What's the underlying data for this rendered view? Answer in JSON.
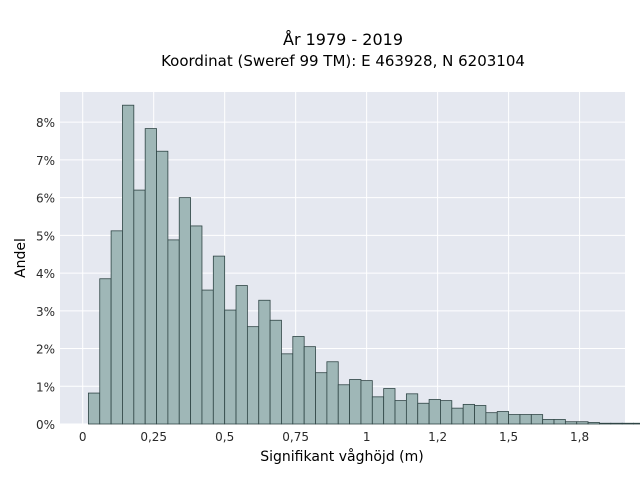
{
  "chart_data": {
    "type": "bar",
    "title_line1": "År 1979 - 2019",
    "title_line2": "Koordinat (Sweref 99 TM): E 463928, N 6203104",
    "xlabel": "Signifikant våghöjd (m)",
    "ylabel": "Andel",
    "xlim": [
      -0.08,
      1.91
    ],
    "ylim": [
      0,
      0.088
    ],
    "grid": true,
    "x_ticks": [
      {
        "value": 0,
        "label": "0"
      },
      {
        "value": 0.25,
        "label": "0,25"
      },
      {
        "value": 0.5,
        "label": "0,5"
      },
      {
        "value": 0.75,
        "label": "0,75"
      },
      {
        "value": 1,
        "label": "1"
      },
      {
        "value": 1.25,
        "label": "1,2"
      },
      {
        "value": 1.5,
        "label": "1,5"
      },
      {
        "value": 1.75,
        "label": "1,8"
      }
    ],
    "y_ticks": [
      {
        "value": 0,
        "label": "0%"
      },
      {
        "value": 0.01,
        "label": "1%"
      },
      {
        "value": 0.02,
        "label": "2%"
      },
      {
        "value": 0.03,
        "label": "3%"
      },
      {
        "value": 0.04,
        "label": "4%"
      },
      {
        "value": 0.05,
        "label": "5%"
      },
      {
        "value": 0.06,
        "label": "6%"
      },
      {
        "value": 0.07,
        "label": "7%"
      },
      {
        "value": 0.08,
        "label": "8%"
      }
    ],
    "bin_start": 0.02,
    "bin_width": 0.04,
    "values": [
      0.0082,
      0.0385,
      0.0512,
      0.0845,
      0.062,
      0.0783,
      0.0723,
      0.0488,
      0.06,
      0.0525,
      0.0355,
      0.0445,
      0.0302,
      0.0367,
      0.0258,
      0.0328,
      0.0275,
      0.0186,
      0.0232,
      0.0205,
      0.0136,
      0.0165,
      0.0104,
      0.0118,
      0.0115,
      0.0072,
      0.0094,
      0.0062,
      0.008,
      0.0055,
      0.0065,
      0.0062,
      0.0042,
      0.0052,
      0.0049,
      0.003,
      0.0033,
      0.0025,
      0.0025,
      0.0025,
      0.0012,
      0.0012,
      0.0006,
      0.0006,
      0.0004,
      0.0002,
      0.0002,
      0.0002,
      0.0002,
      0.0002,
      0.0002
    ],
    "colors": {
      "plot_background": "#e5e8f0",
      "bar_fill": "#9fb7b7",
      "bar_stroke": "#2f4545",
      "grid": "#ffffff",
      "text": "#2a2a2a"
    }
  }
}
